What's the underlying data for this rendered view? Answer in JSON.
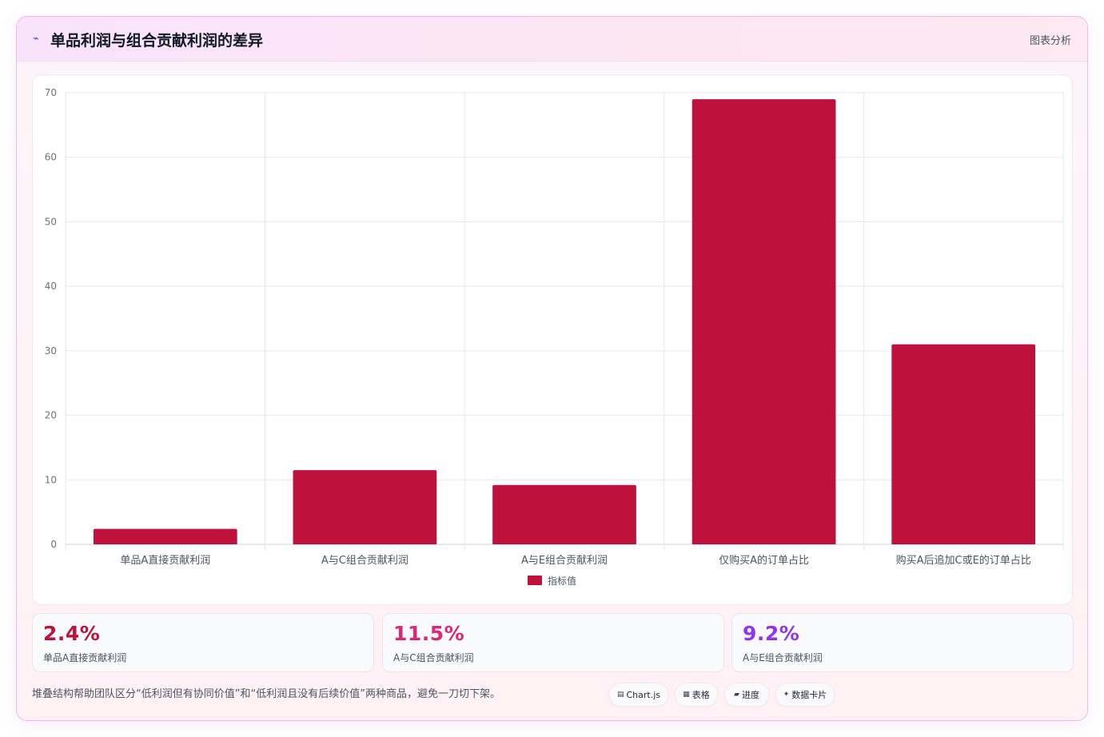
{
  "header": {
    "icon": "chart-line-icon",
    "title": "单品利润与组合贡献利润的差异",
    "link_label": "图表分析"
  },
  "chart_data": {
    "type": "bar",
    "categories": [
      "单品A直接贡献利润",
      "A与C组合贡献利润",
      "A与E组合贡献利润",
      "仅购买A的订单占比",
      "购买A后追加C或E的订单占比"
    ],
    "series": [
      {
        "name": "指标值",
        "values": [
          2.4,
          11.5,
          9.2,
          69,
          31
        ],
        "color": "#be123c"
      }
    ],
    "ylim": [
      0,
      70
    ],
    "yticks": [
      "0",
      "10",
      "20",
      "30",
      "40",
      "50",
      "60",
      "70"
    ],
    "grid": true,
    "legend": "bottom"
  },
  "kpis": [
    {
      "value": "2.4%",
      "label": "单品A直接贡献利润",
      "color": "#be123c"
    },
    {
      "value": "11.5%",
      "label": "A与C组合贡献利润",
      "color": "#db2777"
    },
    {
      "value": "9.2%",
      "label": "A与E组合贡献利润",
      "color": "#9333ea"
    }
  ],
  "footer": {
    "note": "堆叠结构帮助团队区分“低利润但有协同价值”和“低利润且没有后续价值”两种商品，避免一刀切下架。",
    "pills": [
      {
        "icon": "chart-icon",
        "glyph": "▤",
        "label": "Chart.js"
      },
      {
        "icon": "table-icon",
        "glyph": "▦",
        "label": "表格"
      },
      {
        "icon": "progress-icon",
        "glyph": "▰",
        "label": "进度"
      },
      {
        "icon": "card-icon",
        "glyph": "✦",
        "label": "数据卡片"
      }
    ]
  }
}
